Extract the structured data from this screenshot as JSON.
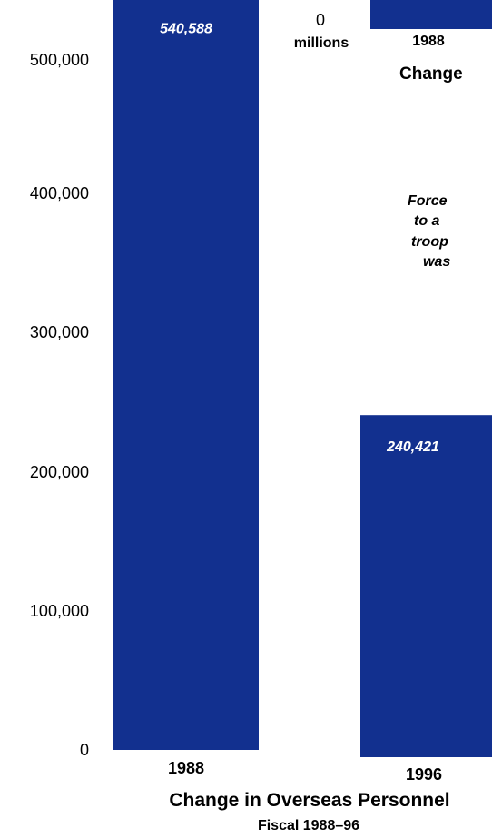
{
  "chart_data": {
    "type": "bar",
    "title": "Change in Overseas Personnel",
    "subtitle": "Fiscal 1988–96",
    "categories": [
      "1988",
      "1996"
    ],
    "values": [
      540588,
      240421
    ],
    "value_labels": [
      "540,588",
      "240,421"
    ],
    "yticks": [
      "0",
      "100,000",
      "200,000",
      "300,000",
      "400,000",
      "500,000"
    ],
    "ylim": [
      0,
      540588
    ],
    "bar_color": "#12308f",
    "value_label_color": "#ffffff",
    "grid": false
  },
  "adjacent_chart": {
    "tick_zero": "0",
    "unit_label": "millions",
    "category": "1988",
    "title_fragment": "Change",
    "note_lines": [
      "Force",
      "to a",
      "troop",
      "was"
    ]
  }
}
